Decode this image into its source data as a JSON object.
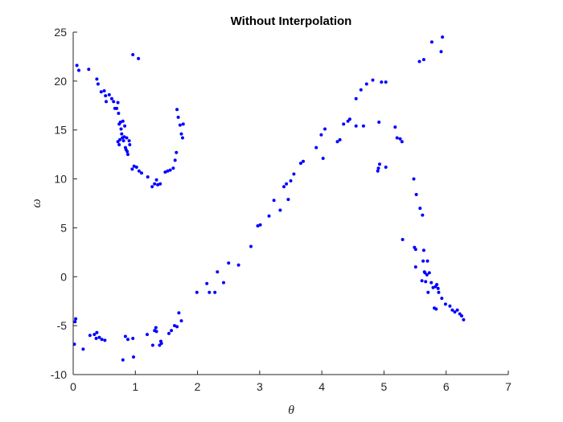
{
  "chart_data": {
    "type": "scatter",
    "title": "Without Interpolation",
    "xlabel": "θ",
    "ylabel": "ω",
    "xlim": [
      0,
      7
    ],
    "ylim": [
      -10,
      25
    ],
    "x_ticks": [
      0,
      1,
      2,
      3,
      4,
      5,
      6,
      7
    ],
    "y_ticks": [
      -10,
      -5,
      0,
      5,
      10,
      15,
      20,
      25
    ],
    "x_tick_labels": [
      "0",
      "1",
      "2",
      "3",
      "4",
      "5",
      "6",
      "7"
    ],
    "y_tick_labels": [
      "-10",
      "-5",
      "0",
      "5",
      "10",
      "15",
      "20",
      "25"
    ],
    "grid": false,
    "marker_color": "#0000ff",
    "series": [
      {
        "points": [
          [
            0.06,
            21.6
          ],
          [
            0.09,
            21.1
          ],
          [
            0.25,
            21.2
          ],
          [
            0.38,
            20.2
          ],
          [
            0.4,
            19.7
          ],
          [
            0.45,
            18.9
          ],
          [
            0.5,
            19.0
          ],
          [
            0.52,
            18.5
          ],
          [
            0.53,
            17.9
          ],
          [
            0.58,
            18.6
          ],
          [
            0.62,
            18.2
          ],
          [
            0.65,
            17.9
          ],
          [
            0.67,
            17.2
          ],
          [
            0.7,
            17.2
          ],
          [
            0.72,
            17.8
          ],
          [
            0.73,
            16.7
          ],
          [
            0.74,
            15.6
          ],
          [
            0.76,
            15.8
          ],
          [
            0.77,
            15.1
          ],
          [
            0.78,
            14.6
          ],
          [
            0.79,
            14.2
          ],
          [
            0.8,
            15.9
          ],
          [
            0.81,
            13.9
          ],
          [
            0.82,
            14.3
          ],
          [
            0.83,
            15.4
          ],
          [
            0.84,
            13.2
          ],
          [
            0.85,
            13.0
          ],
          [
            0.86,
            14.2
          ],
          [
            0.87,
            12.8
          ],
          [
            0.88,
            12.5
          ],
          [
            0.72,
            13.8
          ],
          [
            0.74,
            13.5
          ],
          [
            0.75,
            14.0
          ],
          [
            0.9,
            13.9
          ],
          [
            0.91,
            13.5
          ],
          [
            0.95,
            11.0
          ],
          [
            0.98,
            11.3
          ],
          [
            1.02,
            11.2
          ],
          [
            1.06,
            10.8
          ],
          [
            1.1,
            10.6
          ],
          [
            1.2,
            10.2
          ],
          [
            1.27,
            9.2
          ],
          [
            1.31,
            9.5
          ],
          [
            1.34,
            9.9
          ],
          [
            1.36,
            9.4
          ],
          [
            1.4,
            9.5
          ],
          [
            1.48,
            10.7
          ],
          [
            1.52,
            10.8
          ],
          [
            1.56,
            10.9
          ],
          [
            1.61,
            11.1
          ],
          [
            1.64,
            11.9
          ],
          [
            1.66,
            12.7
          ],
          [
            1.67,
            17.1
          ],
          [
            1.69,
            16.3
          ],
          [
            1.72,
            15.5
          ],
          [
            1.74,
            14.6
          ],
          [
            1.76,
            14.2
          ],
          [
            1.77,
            15.6
          ],
          [
            0.96,
            22.7
          ],
          [
            1.05,
            22.3
          ],
          [
            0.03,
            -4.6
          ],
          [
            0.04,
            -4.3
          ],
          [
            0.02,
            -6.9
          ],
          [
            0.16,
            -7.4
          ],
          [
            0.27,
            -6.0
          ],
          [
            0.34,
            -5.9
          ],
          [
            0.37,
            -6.3
          ],
          [
            0.38,
            -5.7
          ],
          [
            0.42,
            -6.2
          ],
          [
            0.46,
            -6.4
          ],
          [
            0.51,
            -6.5
          ],
          [
            0.8,
            -8.5
          ],
          [
            0.84,
            -6.1
          ],
          [
            0.88,
            -6.4
          ],
          [
            0.96,
            -6.3
          ],
          [
            0.97,
            -8.2
          ],
          [
            1.19,
            -5.9
          ],
          [
            1.28,
            -7.0
          ],
          [
            1.31,
            -5.5
          ],
          [
            1.33,
            -5.2
          ],
          [
            1.34,
            -5.6
          ],
          [
            1.39,
            -7.0
          ],
          [
            1.42,
            -6.8
          ],
          [
            1.41,
            -6.6
          ],
          [
            1.54,
            -5.8
          ],
          [
            1.58,
            -5.5
          ],
          [
            1.63,
            -5.0
          ],
          [
            1.67,
            -5.1
          ],
          [
            1.7,
            -3.7
          ],
          [
            1.74,
            -4.5
          ],
          [
            1.99,
            -1.6
          ],
          [
            2.15,
            -0.7
          ],
          [
            2.19,
            -1.6
          ],
          [
            2.28,
            -1.6
          ],
          [
            2.32,
            0.5
          ],
          [
            2.42,
            -0.6
          ],
          [
            2.5,
            1.4
          ],
          [
            2.66,
            1.2
          ],
          [
            2.86,
            3.1
          ],
          [
            2.97,
            5.2
          ],
          [
            3.01,
            5.3
          ],
          [
            3.15,
            6.2
          ],
          [
            3.23,
            7.8
          ],
          [
            3.33,
            6.8
          ],
          [
            3.39,
            9.2
          ],
          [
            3.43,
            9.5
          ],
          [
            3.46,
            7.9
          ],
          [
            3.5,
            9.8
          ],
          [
            3.55,
            10.5
          ],
          [
            3.66,
            11.6
          ],
          [
            3.7,
            11.8
          ],
          [
            3.91,
            13.2
          ],
          [
            3.99,
            14.5
          ],
          [
            4.02,
            12.1
          ],
          [
            4.05,
            15.1
          ],
          [
            4.25,
            13.8
          ],
          [
            4.29,
            14.0
          ],
          [
            4.35,
            15.6
          ],
          [
            4.42,
            15.9
          ],
          [
            4.45,
            16.1
          ],
          [
            4.55,
            15.4
          ],
          [
            4.55,
            18.2
          ],
          [
            4.63,
            19.1
          ],
          [
            4.67,
            15.4
          ],
          [
            4.72,
            19.7
          ],
          [
            4.82,
            20.1
          ],
          [
            4.92,
            15.8
          ],
          [
            4.96,
            19.9
          ],
          [
            5.03,
            19.9
          ],
          [
            4.9,
            10.8
          ],
          [
            4.91,
            11.1
          ],
          [
            4.93,
            11.5
          ],
          [
            5.03,
            11.2
          ],
          [
            5.18,
            15.3
          ],
          [
            5.21,
            14.2
          ],
          [
            5.26,
            14.1
          ],
          [
            5.29,
            13.8
          ],
          [
            5.3,
            3.8
          ],
          [
            5.48,
            10.0
          ],
          [
            5.52,
            8.4
          ],
          [
            5.49,
            3.0
          ],
          [
            5.51,
            2.8
          ],
          [
            5.51,
            1.0
          ],
          [
            5.58,
            7.0
          ],
          [
            5.61,
            -0.4
          ],
          [
            5.62,
            6.3
          ],
          [
            5.63,
            1.6
          ],
          [
            5.65,
            0.5
          ],
          [
            5.64,
            2.7
          ],
          [
            5.66,
            0.4
          ],
          [
            5.67,
            -0.5
          ],
          [
            5.69,
            0.2
          ],
          [
            5.7,
            1.6
          ],
          [
            5.71,
            -1.6
          ],
          [
            5.73,
            0.4
          ],
          [
            5.76,
            -0.6
          ],
          [
            5.79,
            -1.1
          ],
          [
            5.81,
            -3.2
          ],
          [
            5.83,
            -1.0
          ],
          [
            5.84,
            -3.3
          ],
          [
            5.85,
            -0.8
          ],
          [
            5.87,
            -1.2
          ],
          [
            5.88,
            -1.6
          ],
          [
            5.93,
            -2.2
          ],
          [
            5.99,
            -2.8
          ],
          [
            6.06,
            -3.0
          ],
          [
            6.1,
            -3.4
          ],
          [
            6.14,
            -3.6
          ],
          [
            6.18,
            -3.4
          ],
          [
            6.22,
            -3.8
          ],
          [
            6.25,
            -4.0
          ],
          [
            6.28,
            -4.4
          ],
          [
            5.57,
            22.0
          ],
          [
            5.64,
            22.2
          ],
          [
            5.77,
            24.0
          ],
          [
            5.92,
            23.0
          ],
          [
            5.94,
            24.5
          ]
        ]
      }
    ]
  }
}
